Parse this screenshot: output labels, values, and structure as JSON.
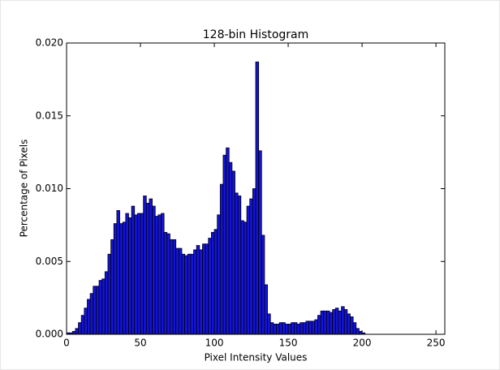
{
  "chart_data": {
    "type": "histogram",
    "title": "128-bin Histogram",
    "x_label": "Pixel Intensity Values",
    "y_label": "Percentage of Pixels",
    "color": "#1414d9",
    "bins": [
      0,
      2,
      4,
      6,
      8,
      10,
      12,
      14,
      16,
      18,
      20,
      22,
      24,
      26,
      28,
      30,
      32,
      34,
      36,
      38,
      40,
      42,
      44,
      46,
      48,
      50,
      52,
      54,
      56,
      58,
      60,
      62,
      64,
      66,
      68,
      70,
      72,
      74,
      76,
      78,
      80,
      82,
      84,
      86,
      88,
      90,
      92,
      94,
      96,
      98,
      100,
      102,
      104,
      106,
      108,
      110,
      112,
      114,
      116,
      118,
      120,
      122,
      124,
      126,
      128,
      130,
      132,
      134,
      136,
      138,
      140,
      142,
      144,
      146,
      148,
      150,
      152,
      154,
      156,
      158,
      160,
      162,
      164,
      166,
      168,
      170,
      172,
      174,
      176,
      178,
      180,
      182,
      184,
      186,
      188,
      190,
      192,
      194,
      196,
      198,
      200,
      202,
      204,
      206,
      208,
      210,
      212,
      214,
      216,
      218,
      220,
      222,
      224,
      226,
      228,
      230,
      232,
      234,
      236,
      238,
      240,
      242,
      244,
      246,
      248,
      250,
      252,
      254,
      256
    ],
    "values": [
      0.0001,
      0.0001,
      0.0002,
      0.0004,
      0.0008,
      0.0013,
      0.0018,
      0.0024,
      0.0028,
      0.0033,
      0.0033,
      0.0037,
      0.0038,
      0.0043,
      0.0055,
      0.0065,
      0.0076,
      0.0085,
      0.0076,
      0.0077,
      0.0083,
      0.008,
      0.0088,
      0.0082,
      0.0083,
      0.0083,
      0.0095,
      0.009,
      0.0093,
      0.0088,
      0.0081,
      0.0082,
      0.0083,
      0.007,
      0.0069,
      0.0065,
      0.0065,
      0.0059,
      0.0059,
      0.0055,
      0.0054,
      0.0055,
      0.0055,
      0.0058,
      0.0061,
      0.0058,
      0.0062,
      0.0062,
      0.0066,
      0.007,
      0.0072,
      0.0082,
      0.0103,
      0.0123,
      0.0128,
      0.0118,
      0.0112,
      0.0097,
      0.0095,
      0.0078,
      0.0077,
      0.0088,
      0.0093,
      0.01,
      0.0187,
      0.0126,
      0.0068,
      0.0034,
      0.0014,
      0.0008,
      0.0007,
      0.0007,
      0.0008,
      0.0008,
      0.0007,
      0.0007,
      0.0008,
      0.0008,
      0.0007,
      0.0008,
      0.0008,
      0.0009,
      0.0009,
      0.0009,
      0.001,
      0.0013,
      0.0016,
      0.0016,
      0.0016,
      0.0015,
      0.0017,
      0.0018,
      0.0016,
      0.0019,
      0.0017,
      0.0014,
      0.0012,
      0.0008,
      0.0004,
      0.0002,
      0.0001,
      0,
      0,
      0,
      0,
      0,
      0,
      0,
      0,
      0,
      0,
      0,
      0,
      0,
      0,
      0,
      0,
      0,
      0,
      0,
      0,
      0,
      0,
      0,
      0,
      0,
      0,
      0
    ],
    "xlim": [
      0,
      256
    ],
    "xticks": [
      0,
      50,
      100,
      150,
      200,
      250
    ],
    "ylim": [
      0,
      0.02
    ],
    "yticks": [
      {
        "value": 0,
        "label": "0.000"
      },
      {
        "value": 0.005,
        "label": "0.005"
      },
      {
        "value": 0.01,
        "label": "0.010"
      },
      {
        "value": 0.015,
        "label": "0.015"
      },
      {
        "value": 0.02,
        "label": "0.020"
      }
    ]
  }
}
